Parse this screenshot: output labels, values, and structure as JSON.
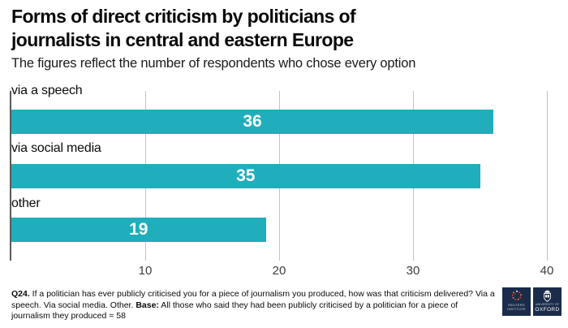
{
  "header": {
    "title_line1": "Forms of direct criticism by politicians of",
    "title_line2": "journalists in central and eastern Europe",
    "subtitle": "The figures reflect the number of respondents who chose every option"
  },
  "chart_data": {
    "type": "bar",
    "orientation": "horizontal",
    "title": "Forms of direct criticism by politicians of journalists in central and eastern Europe",
    "subtitle": "The figures reflect the number of respondents who chose every option",
    "categories": [
      "via a speech",
      "via social media",
      "other"
    ],
    "values": [
      36,
      35,
      19
    ],
    "xticks": [
      10,
      20,
      30,
      40
    ],
    "xlim": [
      0,
      41.5
    ],
    "grid": true,
    "value_labels": "centered in bars",
    "bar_color": "#21aebc",
    "value_label_color": "#ffffff",
    "gridline_color": "#c3c3c3",
    "axis_line_color": "#595959"
  },
  "footnote": {
    "q_label": "Q24.",
    "q_text": " If a politician has ever publicly criticised you for a piece of journalism you produced, how was that criticism delivered? Via a speech. Via social media. Other. ",
    "base_label": "Base:",
    "base_text": " All those who said they had been publicly criticised by a politician for a piece of journalism they produced = 58"
  },
  "logos": {
    "background": "#1b2b4a",
    "reuters": {
      "line1": "REUTERS",
      "line2": "INSTITUTE"
    },
    "oxford": {
      "line1": "UNIVERSITY OF",
      "line2": "OXFORD"
    }
  }
}
